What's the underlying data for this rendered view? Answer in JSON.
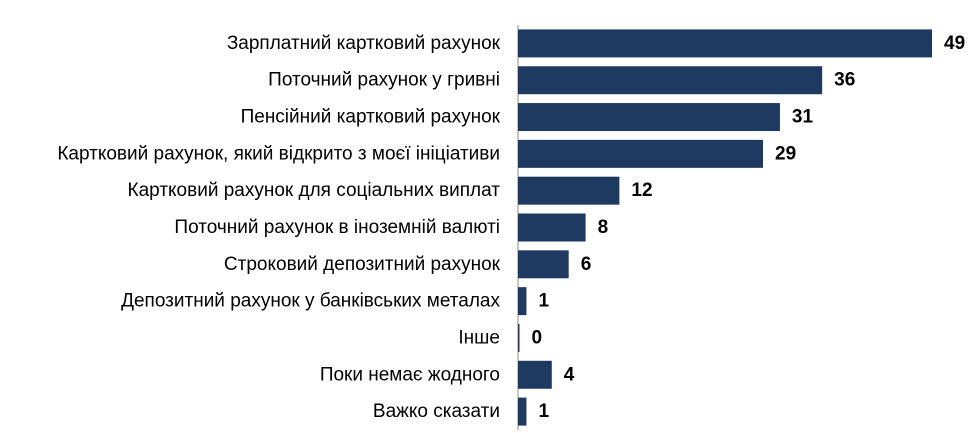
{
  "chart_data": {
    "type": "bar",
    "orientation": "horizontal",
    "title": "",
    "xlabel": "",
    "ylabel": "",
    "categories": [
      "Зарплатний картковий рахунок",
      "Поточний рахунок у гривні",
      "Пенсійний картковий рахунок",
      "Картковий рахунок, який відкрито з моєї ініціативи",
      "Картковий рахунок для соціальних виплат",
      "Поточний рахунок в іноземній валюті",
      "Строковий депозитний рахунок",
      "Депозитний рахунок у банківських металах",
      "Інше",
      "Поки немає жодного",
      "Важко сказати"
    ],
    "values": [
      49,
      36,
      31,
      29,
      12,
      8,
      6,
      1,
      0,
      4,
      1
    ],
    "xlim": [
      0,
      49
    ],
    "grid": false,
    "legend": "none",
    "bar_color": "#1f3a60",
    "axis_color": "#8c8c8c"
  }
}
